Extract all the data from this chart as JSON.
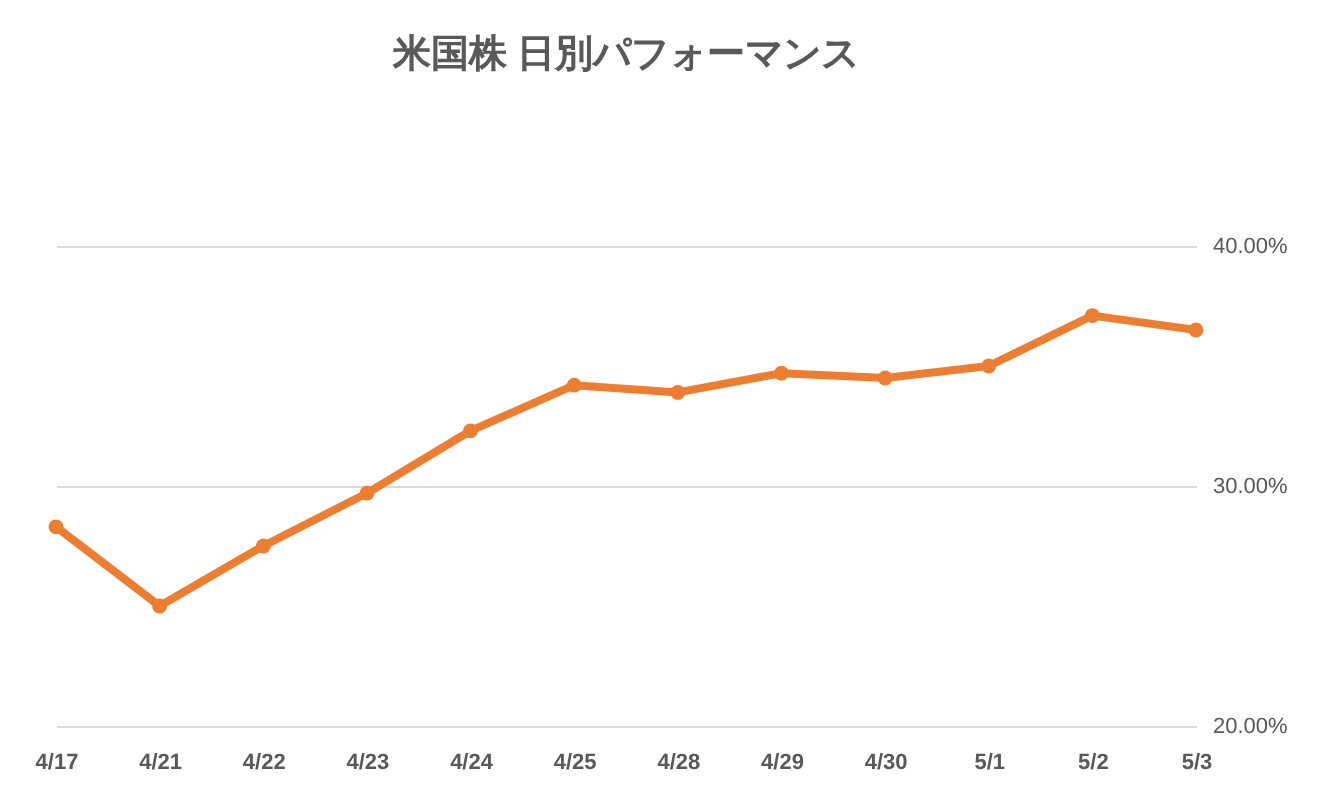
{
  "chart_data": {
    "type": "line",
    "title": "米国株 日別パフォーマンス",
    "categories": [
      "4/17",
      "4/21",
      "4/22",
      "4/23",
      "4/24",
      "4/25",
      "4/28",
      "4/29",
      "4/30",
      "5/1",
      "5/2",
      "5/3"
    ],
    "series": [
      {
        "color": "#ed7d31",
        "values": [
          28.3,
          25.0,
          27.5,
          29.7,
          32.3,
          34.2,
          33.9,
          34.7,
          34.5,
          35.0,
          37.1,
          36.5
        ]
      }
    ],
    "ylim": [
      20,
      40
    ],
    "yticks": [
      {
        "value": 20,
        "label": "20.00%"
      },
      {
        "value": 30,
        "label": "30.00%"
      },
      {
        "value": 40,
        "label": "40.00%"
      }
    ],
    "grid": "y",
    "marker": "circle",
    "line_style": "solid",
    "legend": false
  }
}
